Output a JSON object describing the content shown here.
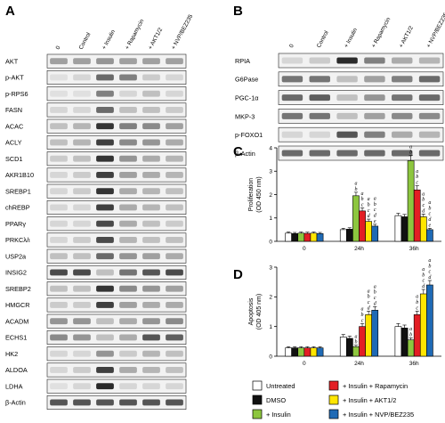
{
  "panels": {
    "A": "A",
    "B": "B",
    "C": "C",
    "D": "D"
  },
  "lanes": [
    "0",
    "Control",
    "+ Insulin",
    "+ Rapamycin",
    "+ AKT1/2",
    "+ NVP/BEZ235"
  ],
  "blotA": {
    "genes": [
      "AKT",
      "p-AKT",
      "p-RPS6",
      "FASN",
      "ACAC",
      "ACLY",
      "SCD1",
      "AKR1B10",
      "SREBP1",
      "chREBP",
      "PPARγ",
      "PRKCλ/ι",
      "USP2a",
      "INSIG2",
      "SREBP2",
      "HMGCR",
      "ACADM",
      "ECHS1",
      "HK2",
      "ALDOA",
      "LDHA",
      "β-Actin"
    ],
    "intensity": [
      [
        0.35,
        0.35,
        0.4,
        0.35,
        0.35,
        0.35
      ],
      [
        0.05,
        0.1,
        0.6,
        0.5,
        0.15,
        0.1
      ],
      [
        0.05,
        0.05,
        0.5,
        0.1,
        0.2,
        0.1
      ],
      [
        0.1,
        0.1,
        0.6,
        0.2,
        0.2,
        0.15
      ],
      [
        0.2,
        0.25,
        0.85,
        0.5,
        0.45,
        0.35
      ],
      [
        0.2,
        0.25,
        0.8,
        0.45,
        0.4,
        0.3
      ],
      [
        0.15,
        0.2,
        0.85,
        0.4,
        0.3,
        0.25
      ],
      [
        0.1,
        0.15,
        0.8,
        0.35,
        0.3,
        0.25
      ],
      [
        0.1,
        0.15,
        0.85,
        0.3,
        0.25,
        0.2
      ],
      [
        0.1,
        0.1,
        0.8,
        0.3,
        0.25,
        0.2
      ],
      [
        0.1,
        0.1,
        0.75,
        0.3,
        0.2,
        0.15
      ],
      [
        0.1,
        0.15,
        0.75,
        0.25,
        0.2,
        0.2
      ],
      [
        0.2,
        0.2,
        0.6,
        0.4,
        0.35,
        0.3
      ],
      [
        0.75,
        0.75,
        0.2,
        0.55,
        0.7,
        0.75
      ],
      [
        0.2,
        0.2,
        0.85,
        0.45,
        0.4,
        0.35
      ],
      [
        0.15,
        0.15,
        0.8,
        0.35,
        0.3,
        0.3
      ],
      [
        0.4,
        0.4,
        0.2,
        0.3,
        0.4,
        0.45
      ],
      [
        0.45,
        0.4,
        0.2,
        0.3,
        0.7,
        0.65
      ],
      [
        0.1,
        0.1,
        0.4,
        0.15,
        0.25,
        0.2
      ],
      [
        0.1,
        0.15,
        0.8,
        0.3,
        0.25,
        0.2
      ],
      [
        0.05,
        0.1,
        0.9,
        0.1,
        0.1,
        0.1
      ],
      [
        0.7,
        0.7,
        0.7,
        0.7,
        0.7,
        0.7
      ]
    ]
  },
  "blotB": {
    "genes": [
      "RPIA",
      "G6Pase",
      "PGC-1α",
      "MKP-3",
      "p-FOXO1",
      "β-Actin"
    ],
    "intensity": [
      [
        0.1,
        0.15,
        0.9,
        0.5,
        0.3,
        0.25
      ],
      [
        0.55,
        0.55,
        0.2,
        0.35,
        0.5,
        0.6
      ],
      [
        0.6,
        0.65,
        0.2,
        0.4,
        0.55,
        0.6
      ],
      [
        0.55,
        0.55,
        0.2,
        0.35,
        0.45,
        0.45
      ],
      [
        0.1,
        0.1,
        0.7,
        0.5,
        0.3,
        0.25
      ],
      [
        0.6,
        0.6,
        0.6,
        0.6,
        0.6,
        0.6
      ]
    ]
  },
  "chart_data": [
    {
      "type": "bar",
      "panel": "C",
      "ylabel": "Proliferation\n(OD 450 nm)",
      "categories": [
        "0",
        "24h",
        "36h"
      ],
      "ylim": [
        0,
        4
      ],
      "yticks": [
        0,
        1,
        2,
        3,
        4
      ],
      "series": [
        {
          "name": "Untreated",
          "color": "#ffffff",
          "values": [
            0.35,
            0.5,
            1.1
          ],
          "err": [
            0.05,
            0.06,
            0.1
          ],
          "sig": [
            [],
            [],
            []
          ]
        },
        {
          "name": "DMSO",
          "color": "#111111",
          "values": [
            0.33,
            0.52,
            1.05
          ],
          "err": [
            0.05,
            0.06,
            0.1
          ],
          "sig": [
            [],
            [],
            []
          ]
        },
        {
          "name": "+ Insulin",
          "color": "#8dc63f",
          "values": [
            0.35,
            1.95,
            3.45
          ],
          "err": [
            0.05,
            0.15,
            0.22
          ],
          "sig": [
            [],
            [
              "a",
              "b"
            ],
            [
              "a",
              "b"
            ]
          ]
        },
        {
          "name": "+ Insulin + Rapamycin",
          "color": "#e31e24",
          "values": [
            0.34,
            1.3,
            2.2
          ],
          "err": [
            0.05,
            0.13,
            0.18
          ],
          "sig": [
            [],
            [
              "a",
              "b",
              "c"
            ],
            [
              "a",
              "b",
              "c"
            ]
          ]
        },
        {
          "name": "+ Insulin + AKT1/2",
          "color": "#ffe600",
          "values": [
            0.35,
            0.85,
            1.05
          ],
          "err": [
            0.05,
            0.1,
            0.12
          ],
          "sig": [
            [],
            [
              "a",
              "b",
              "c",
              "d"
            ],
            [
              "a",
              "b",
              "c",
              "d"
            ]
          ]
        },
        {
          "name": "+ Insulin + NVP/BEZ235",
          "color": "#1f6ab5",
          "values": [
            0.33,
            0.65,
            0.5
          ],
          "err": [
            0.05,
            0.08,
            0.06
          ],
          "sig": [
            [],
            [
              "a",
              "b",
              "c",
              "d",
              "e"
            ],
            [
              "a",
              "b",
              "c",
              "d",
              "e"
            ]
          ]
        }
      ]
    },
    {
      "type": "bar",
      "panel": "D",
      "ylabel": "Apoptosis\n(OD 405 nm)",
      "categories": [
        "0",
        "24h",
        "36h"
      ],
      "ylim": [
        0,
        3
      ],
      "yticks": [
        0,
        1,
        2,
        3
      ],
      "series": [
        {
          "name": "Untreated",
          "color": "#ffffff",
          "values": [
            0.28,
            0.65,
            1.0
          ],
          "err": [
            0.04,
            0.08,
            0.1
          ],
          "sig": [
            [],
            [],
            []
          ]
        },
        {
          "name": "DMSO",
          "color": "#111111",
          "values": [
            0.28,
            0.6,
            0.95
          ],
          "err": [
            0.04,
            0.08,
            0.1
          ],
          "sig": [
            [],
            [],
            []
          ]
        },
        {
          "name": "+ Insulin",
          "color": "#8dc63f",
          "values": [
            0.28,
            0.32,
            0.55
          ],
          "err": [
            0.04,
            0.05,
            0.07
          ],
          "sig": [
            [],
            [
              "a",
              "b"
            ],
            [
              "a",
              "b"
            ]
          ]
        },
        {
          "name": "+ Insulin + Rapamycin",
          "color": "#e31e24",
          "values": [
            0.28,
            1.0,
            1.4
          ],
          "err": [
            0.04,
            0.1,
            0.12
          ],
          "sig": [
            [],
            [
              "a",
              "b",
              "c"
            ],
            [
              "a",
              "b",
              "c"
            ]
          ]
        },
        {
          "name": "+ Insulin + AKT1/2",
          "color": "#ffe600",
          "values": [
            0.28,
            1.4,
            2.1
          ],
          "err": [
            0.04,
            0.12,
            0.15
          ],
          "sig": [
            [],
            [
              "a",
              "b",
              "c",
              "d"
            ],
            [
              "a",
              "b",
              "c",
              "d"
            ]
          ]
        },
        {
          "name": "+ Insulin + NVP/BEZ235",
          "color": "#1f6ab5",
          "values": [
            0.28,
            1.55,
            2.4
          ],
          "err": [
            0.04,
            0.12,
            0.15
          ],
          "sig": [
            [],
            [
              "a",
              "b",
              "c",
              "d"
            ],
            [
              "a",
              "b",
              "c",
              "d"
            ]
          ]
        }
      ]
    }
  ],
  "legend": [
    "Untreated",
    "DMSO",
    "+ Insulin",
    "+ Insulin + Rapamycin",
    "+ Insulin + AKT1/2",
    "+ Insulin + NVP/BEZ235"
  ]
}
